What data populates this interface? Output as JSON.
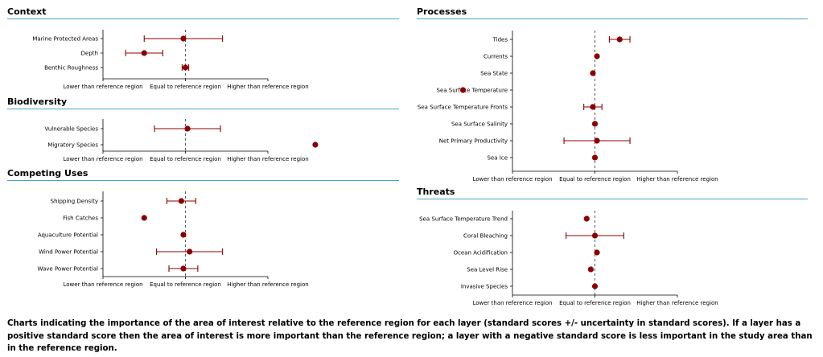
{
  "colors": {
    "marker": "#8b0000",
    "rule": "#4aa3c8",
    "axis": "#000000"
  },
  "x_tick_labels": [
    "Lower than reference region",
    "Equal to reference region",
    "Higher than reference region"
  ],
  "sections": [
    {
      "title": "Context"
    },
    {
      "title": "Biodiversity"
    },
    {
      "title": "Competing Uses"
    },
    {
      "title": "Processes"
    },
    {
      "title": "Threats"
    }
  ],
  "chart_data": [
    {
      "type": "scatter",
      "title": "Context",
      "xlim": [
        -2,
        2
      ],
      "x_ticks": [
        -2,
        0,
        2
      ],
      "categories": [
        "Marine Protected Areas",
        "Depth",
        "Benthic Roughness"
      ],
      "values": [
        -0.05,
        -1.0,
        0.0
      ],
      "uncertainty": [
        0.95,
        0.45,
        0.08
      ]
    },
    {
      "type": "scatter",
      "title": "Biodiversity",
      "xlim": [
        -2,
        2
      ],
      "x_ticks": [
        -2,
        0,
        2
      ],
      "categories": [
        "Vulnerable Species",
        "Migratory Species"
      ],
      "values": [
        0.05,
        3.15
      ],
      "uncertainty": [
        0.8,
        0.0
      ]
    },
    {
      "type": "scatter",
      "title": "Competing Uses",
      "xlim": [
        -2,
        2
      ],
      "x_ticks": [
        -2,
        0,
        2
      ],
      "categories": [
        "Shipping Density",
        "Fish Catches",
        "Aquaculture Potential",
        "Wind Power Potential",
        "Wave Power Potential"
      ],
      "values": [
        -0.1,
        -1.0,
        -0.05,
        0.1,
        -0.05
      ],
      "uncertainty": [
        0.35,
        0.0,
        0.0,
        0.8,
        0.35
      ]
    },
    {
      "type": "scatter",
      "title": "Processes",
      "xlim": [
        -2,
        2
      ],
      "x_ticks": [
        -2,
        0,
        2
      ],
      "categories": [
        "Tides",
        "Currents",
        "Sea State",
        "Sea Surface Temperature",
        "Sea Surface Temperature Fronts",
        "Sea Surface Salinity",
        "Net Primary Productivity",
        "Sea Ice"
      ],
      "values": [
        0.6,
        0.05,
        -0.05,
        -3.2,
        -0.05,
        0.0,
        0.05,
        0.0
      ],
      "uncertainty": [
        0.25,
        0.0,
        0.0,
        0.0,
        0.22,
        0.0,
        0.8,
        0.0
      ]
    },
    {
      "type": "scatter",
      "title": "Threats",
      "xlim": [
        -2,
        2
      ],
      "x_ticks": [
        -2,
        0,
        2
      ],
      "categories": [
        "Sea Surface Temperature Trend",
        "Coral Bleaching",
        "Ocean Acidification",
        "Sea Level Rise",
        "Invasive Species"
      ],
      "values": [
        -0.2,
        0.0,
        0.05,
        -0.1,
        0.0
      ],
      "uncertainty": [
        0.0,
        0.7,
        0.0,
        0.0,
        0.0
      ]
    }
  ],
  "caption": "Charts indicating the importance of the area of interest relative to the reference region for each layer (standard scores +/- uncertainty in standard scores). If a layer has a positive standard score then the area of interest is more important than the reference region; a layer with a negative standard score is less important in the study area than in the reference region."
}
